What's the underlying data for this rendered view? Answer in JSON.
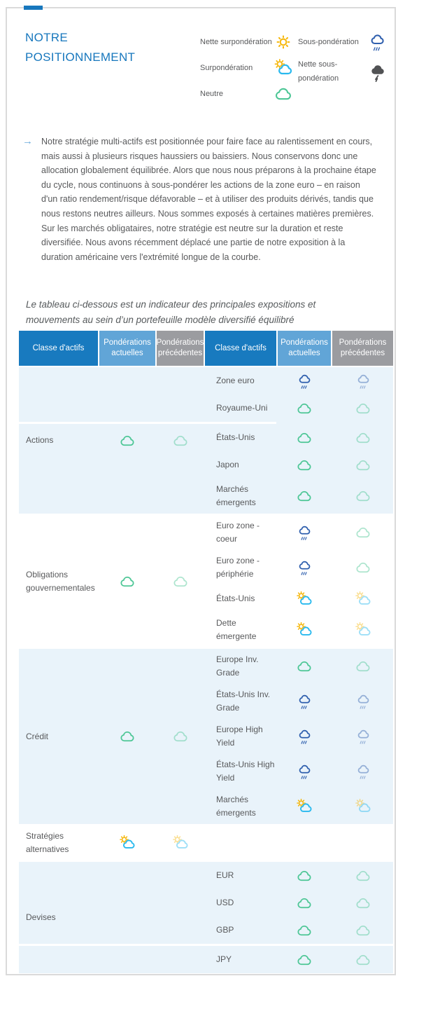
{
  "card": {
    "title": "NOTRE POSITIONNEMENT"
  },
  "legend": {
    "column1": [
      {
        "label": "Nette surpondération",
        "icon": "net-overweight"
      },
      {
        "label": "Surpondération",
        "icon": "overweight"
      },
      {
        "label": "Neutre",
        "icon": "neutral"
      }
    ],
    "column2": [
      {
        "label": "Sous-pondération",
        "icon": "underweight"
      },
      {
        "label": "Nette sous-pondération",
        "icon": "net-underweight"
      }
    ]
  },
  "intro": {
    "bullet": "→",
    "text": "Notre stratégie multi-actifs est positionnée pour faire face au ralentissement en cours, mais aussi à plusieurs risques haussiers ou baissiers. Nous conservons donc une allocation globalement équilibrée. Alors que nous nous préparons à la prochaine étape du cycle, nous continuons à sous-pondérer les actions de la zone euro – en raison d'un ratio rendement/risque défavorable – et à utiliser des produits dérivés, tandis que nous restons neutres ailleurs. Nous sommes exposés à certaines matières premières. Sur les marchés obligataires, notre stratégie est neutre sur la duration et reste diversifiée. Nous avons récemment déplacé une partie de notre exposition à la duration américaine vers l'extrémité longue de la courbe."
  },
  "table": {
    "caption": "Le tableau ci-dessous est un indicateur des principales expositions et mouvements au sein d’un portefeuille modèle diversifié équilibré",
    "columns": [
      "Classe d'actifs",
      "Pondérations actuelles",
      "Pondérations précédentes",
      "Classe d'actifs",
      "Pondérations actuelles",
      "Pondérations précédentes"
    ],
    "sections": [
      {
        "name": "Actions",
        "current": "neutral",
        "previous": "neutral",
        "background": "blue",
        "divider_after": "Royaume-Uni",
        "divider_span": "partial",
        "rows": [
          {
            "label": "Zone euro",
            "current": "underweight",
            "previous": "underweight"
          },
          {
            "label": "Royaume-Uni",
            "current": "neutral",
            "previous": "neutral"
          },
          {
            "label": "États-Unis",
            "current": "neutral",
            "previous": "neutral"
          },
          {
            "label": "Japon",
            "current": "neutral",
            "previous": "neutral"
          },
          {
            "label": "Marchés émergents",
            "current": "neutral",
            "previous": "neutral"
          }
        ]
      },
      {
        "name": "Obligations gouvernementales",
        "current": "neutral",
        "previous": "neutral",
        "background": "white",
        "rows": [
          {
            "label": "Euro zone - coeur",
            "current": "underweight",
            "previous": "neutral"
          },
          {
            "label": "Euro zone - périphérie",
            "current": "underweight",
            "previous": "neutral"
          },
          {
            "label": "États-Unis",
            "current": "overweight",
            "previous": "overweight"
          },
          {
            "label": "Dette émergente",
            "current": "overweight",
            "previous": "overweight"
          }
        ]
      },
      {
        "name": "Crédit",
        "current": "neutral",
        "previous": "neutral",
        "background": "blue",
        "rows": [
          {
            "label": "Europe Inv. Grade",
            "current": "neutral",
            "previous": "neutral"
          },
          {
            "label": "États-Unis Inv. Grade",
            "current": "underweight",
            "previous": "underweight"
          },
          {
            "label": "Europe High Yield",
            "current": "underweight",
            "previous": "underweight"
          },
          {
            "label": "États-Unis High Yield",
            "current": "underweight",
            "previous": "underweight"
          },
          {
            "label": "Marchés émergents",
            "current": "overweight",
            "previous": "overweight"
          }
        ]
      },
      {
        "name": "Stratégies alternatives",
        "current": "overweight",
        "previous": "overweight",
        "background": "white",
        "rows": []
      },
      {
        "name": "Devises",
        "current": null,
        "previous": null,
        "background": "blue",
        "divider_after": "GBP",
        "divider_span": "full",
        "rows": [
          {
            "label": "EUR",
            "current": "neutral",
            "previous": "neutral"
          },
          {
            "label": "USD",
            "current": "neutral",
            "previous": "neutral"
          },
          {
            "label": "GBP",
            "current": "neutral",
            "previous": "neutral"
          },
          {
            "label": "JPY",
            "current": "neutral",
            "previous": "neutral"
          }
        ]
      }
    ]
  },
  "colors": {
    "accent_blue": "#1777bd",
    "header_blue": "#187abf",
    "header_light_blue": "#61a5d7",
    "header_gray": "#9b9ca0",
    "row_light_blue": "#e9f3fa",
    "text_gray": "#58595b",
    "sun_yellow": "#f6b80e",
    "cloud_green": "#4cc695",
    "cloud_blue": "#3060ae",
    "cloud_cyan": "#29b9ee",
    "storm_gray": "#515254"
  }
}
